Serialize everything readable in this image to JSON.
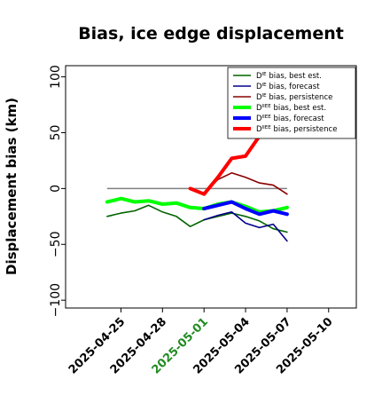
{
  "chart_data": {
    "type": "line",
    "title": "Bias, ice edge displacement",
    "ylabel": "Displacement bias (km)",
    "xlabel": "",
    "ylim": [
      -107,
      110
    ],
    "y_ticks": [
      -100,
      -50,
      0,
      50,
      100
    ],
    "y_tick_labels": [
      "−100",
      "−50",
      "0",
      "50",
      "100"
    ],
    "x_range": [
      "2025-04-21",
      "2025-05-12"
    ],
    "x_ticks": [
      {
        "date": "2025-04-25",
        "label": "2025-04-25",
        "color": "#000000"
      },
      {
        "date": "2025-04-28",
        "label": "2025-04-28",
        "color": "#000000"
      },
      {
        "date": "2025-05-01",
        "label": "2025-05-01",
        "color": "#228b22"
      },
      {
        "date": "2025-05-04",
        "label": "2025-05-04",
        "color": "#000000"
      },
      {
        "date": "2025-05-07",
        "label": "2025-05-07",
        "color": "#000000"
      },
      {
        "date": "2025-05-10",
        "label": "2025-05-10",
        "color": "#000000"
      }
    ],
    "grid": false,
    "legend_position": "top-right",
    "reference_line": {
      "y": 0,
      "from": "2025-04-24",
      "to": "2025-05-07",
      "color": "#808080"
    },
    "series": [
      {
        "name": "Dᴵᴱ bias, best est.",
        "legend_base": "D",
        "legend_sup": "IE",
        "legend_rest": " bias, best est.",
        "color": "#006400",
        "width": 1.6,
        "x": [
          "2025-04-24",
          "2025-04-25",
          "2025-04-26",
          "2025-04-27",
          "2025-04-28",
          "2025-04-29",
          "2025-04-30",
          "2025-05-01",
          "2025-05-02",
          "2025-05-03",
          "2025-05-04",
          "2025-05-05",
          "2025-05-06",
          "2025-05-07"
        ],
        "y": [
          -25,
          -22,
          -20,
          -15,
          -21,
          -25,
          -34,
          -28,
          -25,
          -22,
          -25,
          -29,
          -36,
          -39
        ]
      },
      {
        "name": "Dᴵᴱ bias, forecast",
        "legend_base": "D",
        "legend_sup": "IE",
        "legend_rest": " bias, forecast",
        "color": "#00008b",
        "width": 1.6,
        "x": [
          "2025-05-01",
          "2025-05-02",
          "2025-05-03",
          "2025-05-04",
          "2025-05-05",
          "2025-05-06",
          "2025-05-07"
        ],
        "y": [
          -28,
          -24,
          -21,
          -31,
          -35,
          -32,
          -47
        ]
      },
      {
        "name": "Dᴵᴱ bias, persistence",
        "legend_base": "D",
        "legend_sup": "IE",
        "legend_rest": " bias, persistence",
        "color": "#8b0000",
        "width": 1.6,
        "x": [
          "2025-04-30",
          "2025-05-01",
          "2025-05-02",
          "2025-05-03",
          "2025-05-04",
          "2025-05-05",
          "2025-05-06",
          "2025-05-07"
        ],
        "y": [
          0,
          -4,
          8,
          14,
          10,
          5,
          3,
          -5
        ]
      },
      {
        "name": "Dᴵᴵᴱᴱ bias, best est.",
        "legend_base": "D",
        "legend_sup": "IIEE",
        "legend_rest": " bias, best est.",
        "color": "#00ff00",
        "width": 4,
        "x": [
          "2025-04-24",
          "2025-04-25",
          "2025-04-26",
          "2025-04-27",
          "2025-04-28",
          "2025-04-29",
          "2025-04-30",
          "2025-05-01",
          "2025-05-02",
          "2025-05-03",
          "2025-05-04",
          "2025-05-05",
          "2025-05-06",
          "2025-05-07"
        ],
        "y": [
          -12,
          -9,
          -12,
          -11,
          -14,
          -13,
          -17,
          -18,
          -14,
          -12,
          -16,
          -21,
          -20,
          -17
        ]
      },
      {
        "name": "Dᴵᴵᴱᴱ bias, forecast",
        "legend_base": "D",
        "legend_sup": "IIEE",
        "legend_rest": " bias, forecast",
        "color": "#0000ff",
        "width": 4,
        "x": [
          "2025-05-01",
          "2025-05-02",
          "2025-05-03",
          "2025-05-04",
          "2025-05-05",
          "2025-05-06",
          "2025-05-07"
        ],
        "y": [
          -18,
          -15,
          -12,
          -18,
          -23,
          -20,
          -23
        ]
      },
      {
        "name": "Dᴵᴵᴱᴱ bias, persistence",
        "legend_base": "D",
        "legend_sup": "IIEE",
        "legend_rest": " bias, persistence",
        "color": "#ff0000",
        "width": 4,
        "x": [
          "2025-04-30",
          "2025-05-01",
          "2025-05-02",
          "2025-05-03",
          "2025-05-04",
          "2025-05-05",
          "2025-05-06",
          "2025-05-07"
        ],
        "y": [
          0,
          -5,
          10,
          27,
          29,
          47,
          70,
          98
        ]
      }
    ]
  }
}
